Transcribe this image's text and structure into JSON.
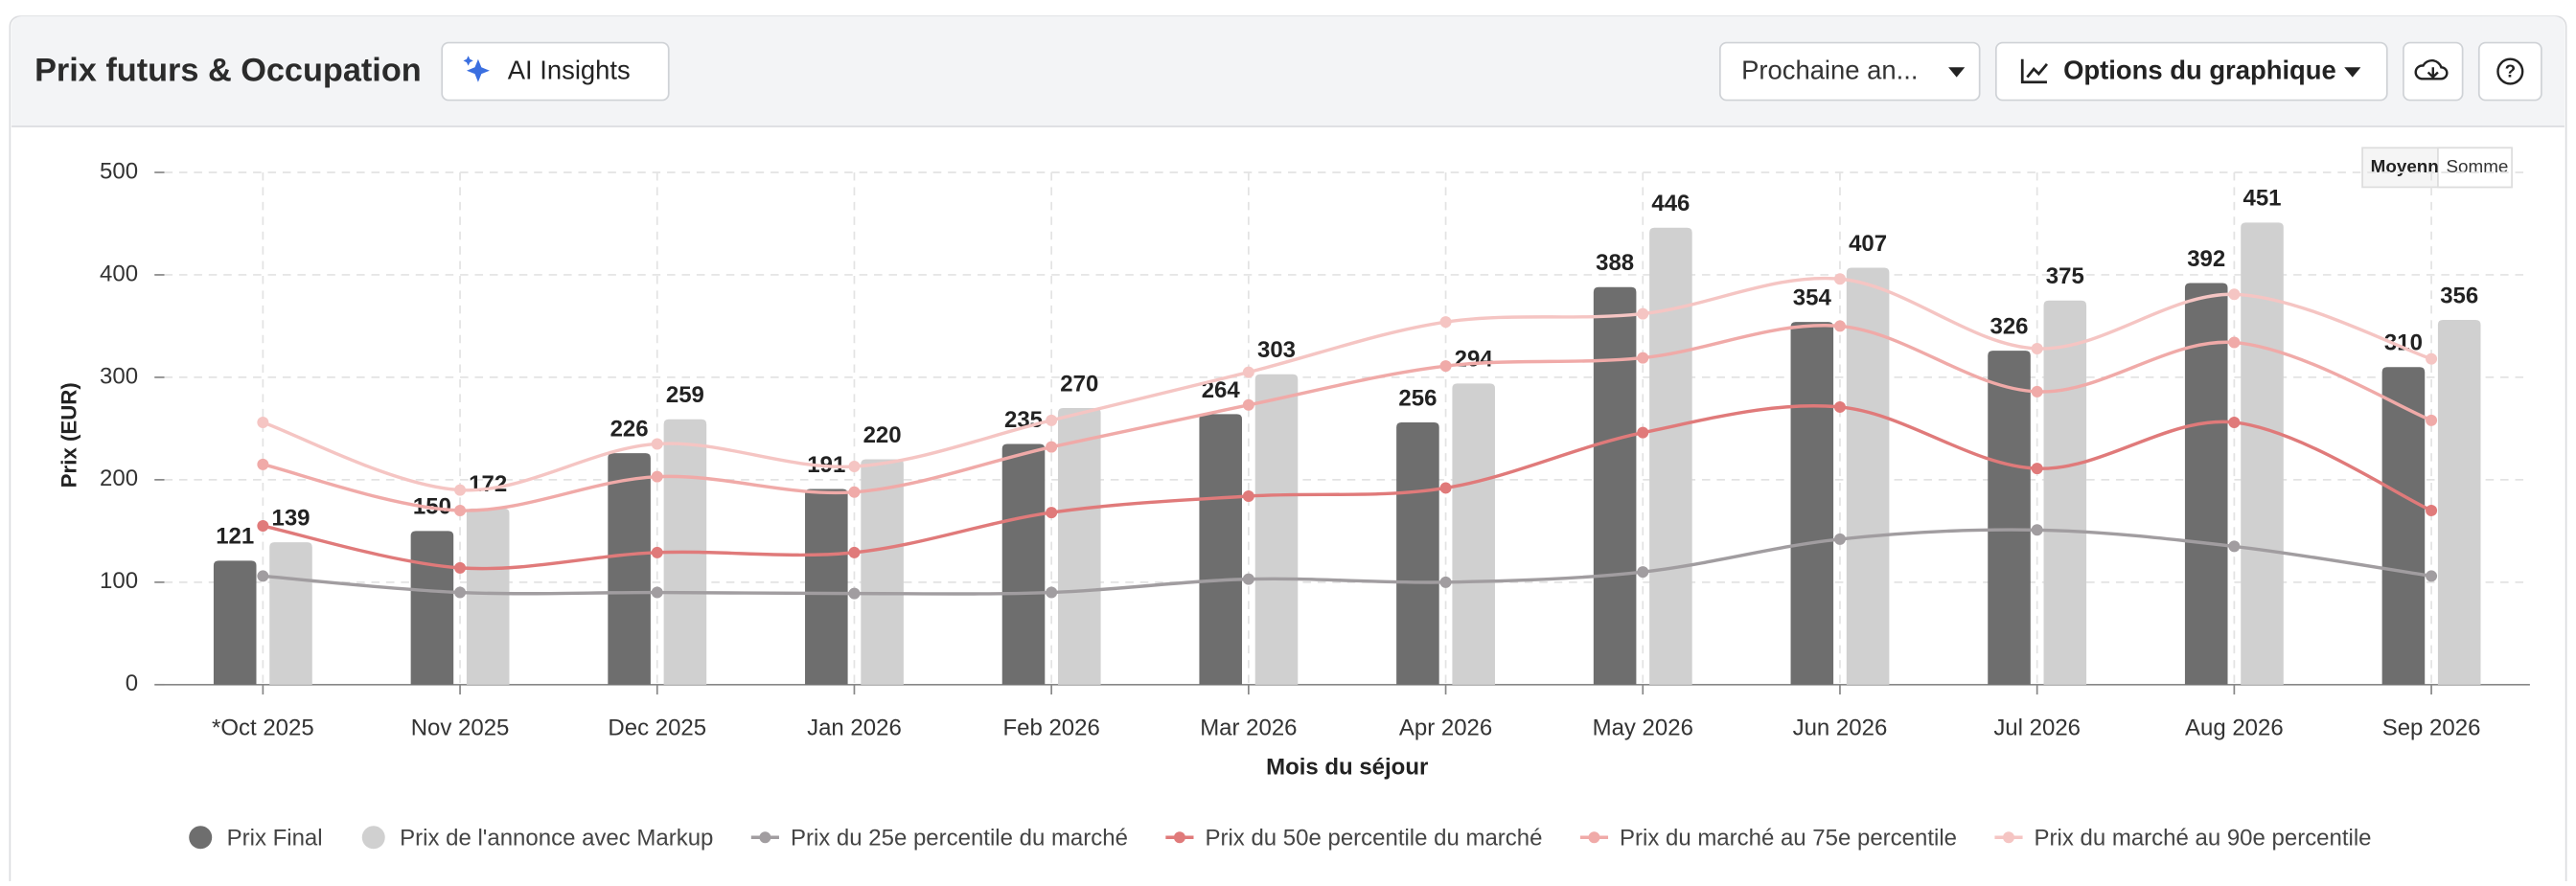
{
  "header": {
    "title": "Prix futurs & Occupation",
    "ai_button": "AI Insights",
    "period_select": "Prochaine an...",
    "options_button": "Options du graphique"
  },
  "toggle": {
    "average": "Moyenne",
    "sum": "Somme"
  },
  "chart_data": {
    "type": "bar-line",
    "y_label": "Prix (EUR)",
    "x_label": "Mois du séjour",
    "categories": [
      "*Oct 2025",
      "Nov 2025",
      "Dec 2025",
      "Jan 2026",
      "Feb 2026",
      "Mar 2026",
      "Apr 2026",
      "May 2026",
      "Jun 2026",
      "Jul 2026",
      "Aug 2026",
      "Sep 2026"
    ],
    "ylim": [
      0,
      500
    ],
    "yticks": [
      0,
      100,
      200,
      300,
      400,
      500
    ],
    "grid": true,
    "series": [
      {
        "name": "Prix Final",
        "kind": "bar",
        "color": "#6e6e6e",
        "values": [
          121,
          150,
          226,
          191,
          235,
          264,
          256,
          388,
          354,
          326,
          392,
          310
        ]
      },
      {
        "name": "Prix de l'annonce avec Markup",
        "kind": "bar",
        "color": "#d0d0d0",
        "values": [
          139,
          172,
          259,
          220,
          270,
          303,
          294,
          446,
          407,
          375,
          451,
          356
        ]
      },
      {
        "name": "Prix du 25e percentile du marché",
        "kind": "line",
        "color": "#a19da0",
        "values": [
          106,
          90,
          90,
          89,
          90,
          103,
          100,
          110,
          142,
          151,
          135,
          106
        ]
      },
      {
        "name": "Prix du 50e percentile du marché",
        "kind": "line",
        "color": "#e07a7a",
        "values": [
          155,
          114,
          129,
          129,
          168,
          184,
          192,
          246,
          271,
          211,
          256,
          170
        ]
      },
      {
        "name": "Prix du marché au 75e percentile",
        "kind": "line",
        "color": "#f0aaa8",
        "values": [
          215,
          170,
          203,
          188,
          232,
          273,
          311,
          319,
          350,
          286,
          334,
          258
        ]
      },
      {
        "name": "Prix du marché au 90e percentile",
        "kind": "line",
        "color": "#f5c5c3",
        "values": [
          256,
          190,
          235,
          213,
          258,
          305,
          354,
          362,
          396,
          328,
          381,
          318
        ]
      }
    ]
  }
}
